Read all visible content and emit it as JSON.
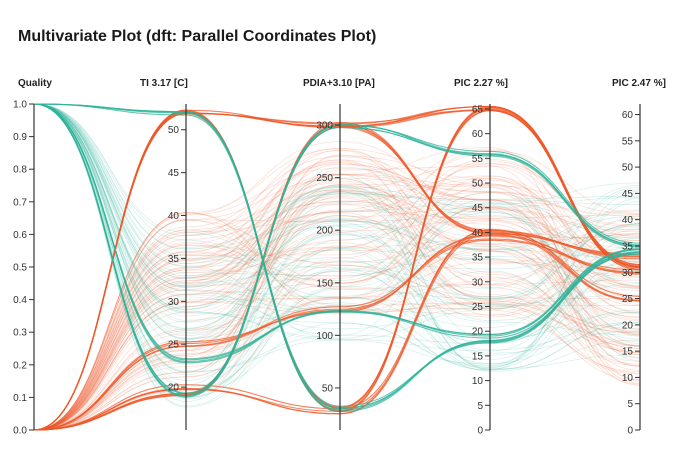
{
  "title": "Multivariate Plot (dft: Parallel Coordinates Plot)",
  "colors": {
    "orange": "#ef5a2a",
    "teal": "#2fb39a",
    "axis": "#333333"
  },
  "chart_data": {
    "type": "parallel-coordinates",
    "title": "Multivariate Plot (dft: Parallel Coordinates Plot)",
    "axes": [
      {
        "name": "Quality",
        "ticks": [
          "0.0",
          "0.1",
          "0.2",
          "0.3",
          "0.4",
          "0.5",
          "0.6",
          "0.7",
          "0.8",
          "0.9",
          "1.0"
        ],
        "tick_values": [
          0,
          0.1,
          0.2,
          0.3,
          0.4,
          0.5,
          0.6,
          0.7,
          0.8,
          0.9,
          1.0
        ],
        "range": [
          0,
          1
        ],
        "tick_side": "left"
      },
      {
        "name": "TI 3.17 [C]",
        "ticks": [
          "20",
          "25",
          "30",
          "35",
          "40",
          "45",
          "50"
        ],
        "tick_values": [
          20,
          25,
          30,
          35,
          40,
          45,
          50
        ],
        "range": [
          15,
          53
        ],
        "tick_side": "left"
      },
      {
        "name": "PDIA+3.10 [PA]",
        "ticks": [
          "50",
          "100",
          "150",
          "200",
          "250",
          "300"
        ],
        "tick_values": [
          50,
          100,
          150,
          200,
          250,
          300
        ],
        "range": [
          10,
          320
        ],
        "tick_side": "left"
      },
      {
        "name": "PIC 2.27 %]",
        "ticks": [
          "0",
          "5",
          "10",
          "15",
          "20",
          "25",
          "30",
          "35",
          "40",
          "45",
          "50",
          "55",
          "60",
          "65"
        ],
        "tick_values": [
          0,
          5,
          10,
          15,
          20,
          25,
          30,
          35,
          40,
          45,
          50,
          55,
          60,
          65
        ],
        "range": [
          0,
          66
        ],
        "tick_side": "left"
      },
      {
        "name": "PIC 2.47 %]",
        "ticks": [
          "0",
          "5",
          "10",
          "15",
          "20",
          "25",
          "30",
          "35",
          "40",
          "45",
          "50",
          "55",
          "60"
        ],
        "tick_values": [
          0,
          5,
          10,
          15,
          20,
          25,
          30,
          35,
          40,
          45,
          50,
          55,
          60
        ],
        "range": [
          0,
          62
        ],
        "tick_side": "left"
      }
    ],
    "series": [
      {
        "color": "#ef5a2a",
        "weight": "bold",
        "count": 6,
        "values": [
          0.0,
          52,
          30,
          65,
          31
        ]
      },
      {
        "color": "#ef5a2a",
        "weight": "bold",
        "count": 6,
        "values": [
          0.0,
          52,
          300,
          65,
          31
        ]
      },
      {
        "color": "#ef5a2a",
        "weight": "bold",
        "count": 5,
        "values": [
          0.0,
          19,
          300,
          40,
          33
        ]
      },
      {
        "color": "#ef5a2a",
        "weight": "bold",
        "count": 4,
        "values": [
          0.0,
          20,
          28,
          40,
          25
        ]
      },
      {
        "color": "#ef5a2a",
        "weight": "bold",
        "count": 4,
        "values": [
          0.0,
          25,
          125,
          39,
          30
        ]
      },
      {
        "color": "#ef5a2a",
        "weight": "light",
        "count": 90,
        "values": [
          0.0,
          30,
          200,
          40,
          25
        ]
      },
      {
        "color": "#2fb39a",
        "weight": "bold",
        "count": 5,
        "values": [
          1.0,
          52,
          30,
          18,
          34
        ]
      },
      {
        "color": "#2fb39a",
        "weight": "bold",
        "count": 5,
        "values": [
          1.0,
          19,
          300,
          56,
          35
        ]
      },
      {
        "color": "#2fb39a",
        "weight": "bold",
        "count": 4,
        "values": [
          1.0,
          23,
          125,
          19,
          34
        ]
      },
      {
        "color": "#2fb39a",
        "weight": "light",
        "count": 60,
        "values": [
          1.0,
          28,
          180,
          30,
          30
        ]
      }
    ],
    "grid": false,
    "legend": "none"
  }
}
